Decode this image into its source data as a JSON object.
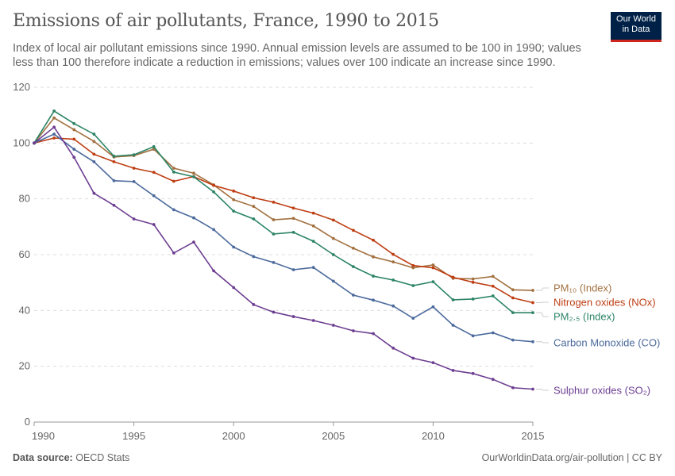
{
  "header": {
    "title": "Emissions of air pollutants, France, 1990 to 2015",
    "subtitle": "Index of local air pollutant emissions since 1990. Annual emission levels are assumed to be 100 in 1990; values less than 100 therefore indicate a reduction in emissions; values over 100 indicate an increase since 1990.",
    "logo_line1": "Our World",
    "logo_line2": "in Data"
  },
  "footer": {
    "source_label": "Data source:",
    "source_value": "OECD Stats",
    "url": "OurWorldinData.org/air-pollution | CC BY"
  },
  "chart_data": {
    "type": "line",
    "title": "Emissions of air pollutants, France, 1990 to 2015",
    "xlim": [
      1990,
      2015
    ],
    "ylim": [
      0,
      120
    ],
    "grid": "horizontal dashed",
    "legend": "right, labels at line ends",
    "x_ticks": [
      "1990",
      "1995",
      "2000",
      "2005",
      "2010",
      "2015"
    ],
    "y_ticks": [
      "0",
      "20",
      "40",
      "60",
      "80",
      "100",
      "120"
    ],
    "x": [
      1990,
      1991,
      1992,
      1993,
      1994,
      1995,
      1996,
      1997,
      1998,
      1999,
      2000,
      2001,
      2002,
      2003,
      2004,
      2005,
      2006,
      2007,
      2008,
      2009,
      2010,
      2011,
      2012,
      2013,
      2014,
      2015
    ],
    "series": [
      {
        "name": "PM₁₀ (Index)",
        "color": "#a2703f",
        "values": [
          100,
          109,
          104.8,
          100.6,
          95,
          95.5,
          97.8,
          91,
          89.2,
          85,
          79.7,
          77.3,
          72.5,
          73,
          70.3,
          65.8,
          62.3,
          59.2,
          57.4,
          55.3,
          56.3,
          51.5,
          51.3,
          52.2,
          47.4,
          47.2
        ]
      },
      {
        "name": "Nitrogen oxides (NOx)",
        "color": "#be3e13",
        "values": [
          100,
          101.8,
          101.4,
          96,
          93.3,
          91,
          89.5,
          86.3,
          88,
          84.8,
          82.8,
          80.4,
          78.8,
          76.7,
          74.9,
          72.4,
          68.7,
          65.2,
          60.1,
          56.1,
          55.3,
          51.9,
          50.1,
          48.7,
          44.5,
          42.8
        ]
      },
      {
        "name": "PM₂.₅ (Index)",
        "color": "#2c8465",
        "values": [
          100,
          111.5,
          107,
          103.2,
          95.3,
          95.8,
          98.7,
          89.6,
          87.9,
          82.5,
          75.6,
          72.8,
          67.4,
          68,
          64.8,
          60,
          55.7,
          52.3,
          50.9,
          48.9,
          50.3,
          43.8,
          44.1,
          45.2,
          39.2,
          39.2
        ]
      },
      {
        "name": "Carbon Monoxide (CO)",
        "color": "#4c6a9c",
        "values": [
          100,
          103.2,
          97.8,
          93.3,
          86.5,
          86.2,
          81.1,
          76.1,
          73.2,
          69,
          62.7,
          59.3,
          57.2,
          54.6,
          55.4,
          50.5,
          45.5,
          43.7,
          41.6,
          37.2,
          41.3,
          34.7,
          30.9,
          32,
          29.4,
          28.8
        ]
      },
      {
        "name": "Sulphur oxides (SO₂)",
        "color": "#6d3e91",
        "values": [
          100,
          105.7,
          94.9,
          82,
          77.7,
          72.8,
          70.8,
          60.6,
          64.5,
          54.2,
          48.2,
          42.1,
          39.4,
          37.8,
          36.4,
          34.7,
          32.7,
          31.7,
          26.5,
          22.9,
          21.3,
          18.5,
          17.4,
          15.3,
          12.3,
          11.8
        ]
      }
    ]
  }
}
